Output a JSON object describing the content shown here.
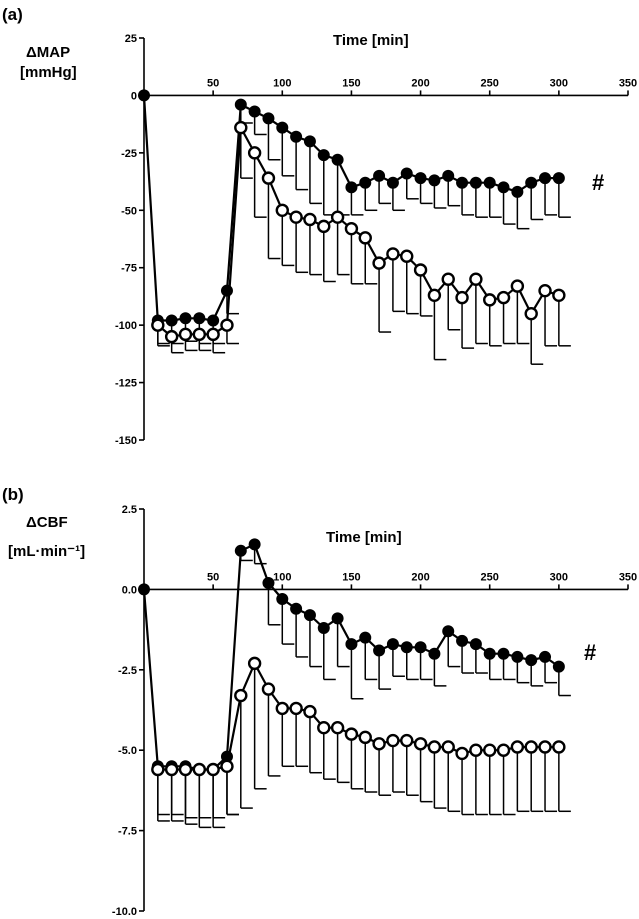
{
  "chart_data": [
    {
      "type": "line",
      "panel_label": "(a)",
      "ylabel_lines": [
        "ΔMAP",
        "[mmHg]"
      ],
      "xlabel": "Time [min]",
      "xlim": [
        0,
        350
      ],
      "ylim": [
        -150,
        25
      ],
      "xticks": [
        50,
        100,
        150,
        200,
        250,
        300,
        350
      ],
      "yticks": [
        25,
        0,
        -25,
        -50,
        -75,
        -100,
        -125,
        -150
      ],
      "ytick_labels": [
        "25",
        "0",
        "-25",
        "-50",
        "-75",
        "-100",
        "-125",
        "-150"
      ],
      "significance_mark": "#",
      "series": [
        {
          "marker": "filled-circle",
          "x": [
            0,
            10,
            20,
            30,
            40,
            50,
            60,
            70,
            80,
            90,
            100,
            110,
            120,
            130,
            140,
            150,
            160,
            170,
            180,
            190,
            200,
            210,
            220,
            230,
            240,
            250,
            260,
            270,
            280,
            290,
            300
          ],
          "y": [
            0,
            -98,
            -98,
            -97,
            -97,
            -98,
            -85,
            -4,
            -7,
            -10,
            -14,
            -18,
            -20,
            -26,
            -28,
            -40,
            -38,
            -35,
            -38,
            -34,
            -36,
            -37,
            -35,
            -38,
            -38,
            -38,
            -40,
            -42,
            -38,
            -36,
            -36
          ],
          "err": [
            0,
            11,
            10,
            10,
            11,
            10,
            10,
            8,
            10,
            18,
            21,
            23,
            27,
            26,
            24,
            12,
            12,
            12,
            12,
            11,
            11,
            12,
            13,
            14,
            15,
            15,
            16,
            16,
            16,
            16,
            17
          ]
        },
        {
          "marker": "open-circle",
          "x": [
            10,
            20,
            30,
            40,
            50,
            60,
            70,
            80,
            90,
            100,
            110,
            120,
            130,
            140,
            150,
            160,
            170,
            180,
            190,
            200,
            210,
            220,
            230,
            240,
            250,
            260,
            270,
            280,
            290,
            300
          ],
          "y": [
            -100,
            -105,
            -104,
            -104,
            -104,
            -100,
            -14,
            -25,
            -36,
            -50,
            -53,
            -54,
            -57,
            -53,
            -58,
            -62,
            -73,
            -69,
            -70,
            -76,
            -87,
            -80,
            -88,
            -80,
            -89,
            -88,
            -83,
            -95,
            -85,
            -87
          ],
          "err": [
            8,
            7,
            7,
            7,
            8,
            8,
            22,
            28,
            35,
            24,
            24,
            24,
            24,
            25,
            24,
            20,
            30,
            25,
            25,
            20,
            28,
            22,
            22,
            28,
            20,
            20,
            25,
            22,
            24,
            22
          ]
        }
      ]
    },
    {
      "type": "line",
      "panel_label": "(b)",
      "ylabel_lines": [
        "ΔCBF",
        "[mL·min⁻¹]"
      ],
      "xlabel": "Time [min]",
      "xlim": [
        0,
        350
      ],
      "ylim": [
        -10,
        2.5
      ],
      "xticks": [
        50,
        100,
        150,
        200,
        250,
        300,
        350
      ],
      "yticks": [
        2.5,
        0,
        -2.5,
        -5,
        -7.5,
        -10
      ],
      "ytick_labels": [
        "2.5",
        "0.0",
        "-2.5",
        "-5.0",
        "-7.5",
        "-10.0"
      ],
      "significance_mark": "#",
      "series": [
        {
          "marker": "filled-circle",
          "x": [
            0,
            10,
            20,
            30,
            40,
            50,
            60,
            70,
            80,
            90,
            100,
            110,
            120,
            130,
            140,
            150,
            160,
            170,
            180,
            190,
            200,
            210,
            220,
            230,
            240,
            250,
            260,
            270,
            280,
            290,
            300
          ],
          "y": [
            0,
            -5.5,
            -5.5,
            -5.5,
            -5.6,
            -5.6,
            -5.2,
            1.2,
            1.4,
            0.2,
            -0.3,
            -0.6,
            -0.8,
            -1.2,
            -0.9,
            -1.7,
            -1.5,
            -1.9,
            -1.7,
            -1.8,
            -1.8,
            -2.0,
            -1.3,
            -1.6,
            -1.7,
            -2.0,
            -2.0,
            -2.1,
            -2.2,
            -2.1,
            -2.4
          ],
          "err": [
            0,
            1.7,
            1.7,
            1.8,
            1.8,
            1.8,
            1.8,
            0.3,
            0.6,
            1.3,
            1.4,
            1.5,
            1.6,
            1.6,
            1.5,
            1.7,
            1.3,
            1.2,
            1.0,
            1.0,
            1.0,
            1.0,
            1.1,
            1.0,
            0.9,
            0.8,
            0.8,
            0.8,
            0.8,
            0.8,
            0.9
          ]
        },
        {
          "marker": "open-circle",
          "x": [
            10,
            20,
            30,
            40,
            50,
            60,
            70,
            80,
            90,
            100,
            110,
            120,
            130,
            140,
            150,
            160,
            170,
            180,
            190,
            200,
            210,
            220,
            230,
            240,
            250,
            260,
            270,
            280,
            290,
            300
          ],
          "y": [
            -5.6,
            -5.6,
            -5.6,
            -5.6,
            -5.6,
            -5.5,
            -3.3,
            -2.3,
            -3.1,
            -3.7,
            -3.7,
            -3.8,
            -4.3,
            -4.3,
            -4.5,
            -4.6,
            -4.8,
            -4.7,
            -4.7,
            -4.8,
            -4.9,
            -4.9,
            -5.1,
            -5.0,
            -5.0,
            -5.0,
            -4.9,
            -4.9,
            -4.9,
            -4.9
          ],
          "err": [
            1.4,
            1.4,
            1.5,
            1.5,
            1.5,
            1.5,
            3.5,
            3.9,
            2.7,
            1.8,
            1.8,
            1.9,
            1.6,
            1.7,
            1.7,
            1.7,
            1.6,
            1.6,
            1.7,
            1.8,
            1.9,
            2.0,
            1.9,
            2.0,
            2.0,
            2.0,
            2.0,
            2.0,
            2.0,
            2.0
          ]
        }
      ]
    }
  ]
}
